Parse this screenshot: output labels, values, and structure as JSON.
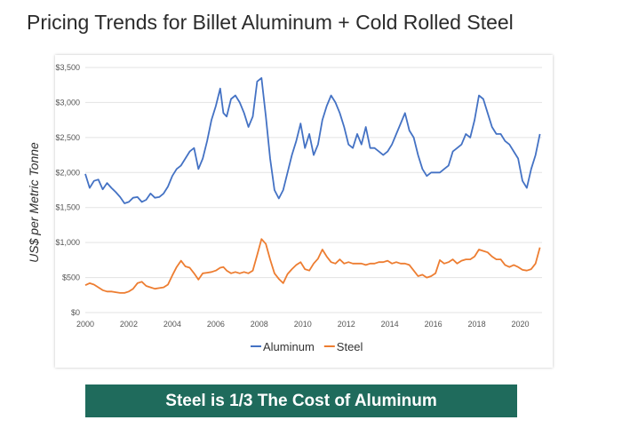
{
  "title": "Pricing Trends for Billet Aluminum + Cold Rolled Steel",
  "banner": "Steel is 1/3 The Cost of Aluminum",
  "colors": {
    "aluminum": "#4472c4",
    "steel": "#ed7d31",
    "banner": "#1f6b5c"
  },
  "chart_data": {
    "type": "line",
    "title": "",
    "xlabel": "",
    "ylabel": "US$ per Metric Tonne",
    "xlim": [
      2000,
      2021
    ],
    "ylim": [
      0,
      3500
    ],
    "x_ticks": [
      "2000",
      "2002",
      "2004",
      "2006",
      "2008",
      "2010",
      "2012",
      "2014",
      "2016",
      "2018",
      "2020"
    ],
    "y_ticks": [
      "$0",
      "$500",
      "$1,000",
      "$1,500",
      "$2,000",
      "$2,500",
      "$3,000",
      "$3,500"
    ],
    "grid": true,
    "legend": "bottom",
    "series": [
      {
        "name": "Aluminum",
        "color": "#4472c4",
        "x": [
          2000.0,
          2000.2,
          2000.4,
          2000.6,
          2000.8,
          2001.0,
          2001.2,
          2001.4,
          2001.6,
          2001.8,
          2002.0,
          2002.2,
          2002.4,
          2002.6,
          2002.8,
          2003.0,
          2003.2,
          2003.4,
          2003.6,
          2003.8,
          2004.0,
          2004.2,
          2004.4,
          2004.6,
          2004.8,
          2005.0,
          2005.2,
          2005.4,
          2005.6,
          2005.8,
          2006.0,
          2006.2,
          2006.35,
          2006.5,
          2006.7,
          2006.9,
          2007.1,
          2007.3,
          2007.5,
          2007.7,
          2007.9,
          2008.1,
          2008.3,
          2008.5,
          2008.7,
          2008.9,
          2009.1,
          2009.3,
          2009.5,
          2009.7,
          2009.9,
          2010.1,
          2010.3,
          2010.5,
          2010.7,
          2010.9,
          2011.1,
          2011.3,
          2011.5,
          2011.7,
          2011.9,
          2012.1,
          2012.3,
          2012.5,
          2012.7,
          2012.9,
          2013.1,
          2013.3,
          2013.5,
          2013.7,
          2013.9,
          2014.1,
          2014.3,
          2014.5,
          2014.7,
          2014.9,
          2015.1,
          2015.3,
          2015.5,
          2015.7,
          2015.9,
          2016.1,
          2016.3,
          2016.5,
          2016.7,
          2016.9,
          2017.1,
          2017.3,
          2017.5,
          2017.7,
          2017.9,
          2018.1,
          2018.3,
          2018.5,
          2018.7,
          2018.9,
          2019.1,
          2019.3,
          2019.5,
          2019.7,
          2019.9,
          2020.1,
          2020.3,
          2020.5,
          2020.7,
          2020.9
        ],
        "y": [
          1980,
          1780,
          1880,
          1900,
          1760,
          1850,
          1780,
          1720,
          1650,
          1560,
          1580,
          1640,
          1650,
          1580,
          1610,
          1700,
          1640,
          1650,
          1700,
          1800,
          1950,
          2050,
          2100,
          2200,
          2300,
          2350,
          2050,
          2200,
          2450,
          2750,
          2950,
          3200,
          2850,
          2800,
          3050,
          3100,
          3000,
          2850,
          2650,
          2800,
          3300,
          3350,
          2800,
          2200,
          1750,
          1630,
          1750,
          2000,
          2250,
          2450,
          2700,
          2350,
          2550,
          2250,
          2400,
          2750,
          2950,
          3100,
          3000,
          2850,
          2650,
          2400,
          2350,
          2550,
          2400,
          2650,
          2350,
          2350,
          2300,
          2250,
          2300,
          2400,
          2550,
          2700,
          2850,
          2600,
          2500,
          2250,
          2050,
          1950,
          2000,
          2000,
          2000,
          2050,
          2100,
          2300,
          2350,
          2400,
          2550,
          2500,
          2750,
          3100,
          3050,
          2850,
          2650,
          2550,
          2550,
          2450,
          2400,
          2300,
          2200,
          1880,
          1780,
          2050,
          2250,
          2550
        ]
      },
      {
        "name": "Steel",
        "color": "#ed7d31",
        "x": [
          2000.0,
          2000.2,
          2000.4,
          2000.6,
          2000.8,
          2001.0,
          2001.2,
          2001.4,
          2001.6,
          2001.8,
          2002.0,
          2002.2,
          2002.4,
          2002.6,
          2002.8,
          2003.0,
          2003.2,
          2003.4,
          2003.6,
          2003.8,
          2004.0,
          2004.2,
          2004.4,
          2004.6,
          2004.8,
          2005.0,
          2005.2,
          2005.4,
          2005.6,
          2005.8,
          2006.0,
          2006.2,
          2006.35,
          2006.5,
          2006.7,
          2006.9,
          2007.1,
          2007.3,
          2007.5,
          2007.7,
          2007.9,
          2008.1,
          2008.3,
          2008.5,
          2008.7,
          2008.9,
          2009.1,
          2009.3,
          2009.5,
          2009.7,
          2009.9,
          2010.1,
          2010.3,
          2010.5,
          2010.7,
          2010.9,
          2011.1,
          2011.3,
          2011.5,
          2011.7,
          2011.9,
          2012.1,
          2012.3,
          2012.5,
          2012.7,
          2012.9,
          2013.1,
          2013.3,
          2013.5,
          2013.7,
          2013.9,
          2014.1,
          2014.3,
          2014.5,
          2014.7,
          2014.9,
          2015.1,
          2015.3,
          2015.5,
          2015.7,
          2015.9,
          2016.1,
          2016.3,
          2016.5,
          2016.7,
          2016.9,
          2017.1,
          2017.3,
          2017.5,
          2017.7,
          2017.9,
          2018.1,
          2018.3,
          2018.5,
          2018.7,
          2018.9,
          2019.1,
          2019.3,
          2019.5,
          2019.7,
          2019.9,
          2020.1,
          2020.3,
          2020.5,
          2020.7,
          2020.9
        ],
        "y": [
          390,
          420,
          400,
          360,
          320,
          300,
          300,
          290,
          280,
          280,
          300,
          340,
          420,
          440,
          380,
          360,
          340,
          350,
          360,
          400,
          530,
          650,
          740,
          660,
          640,
          560,
          470,
          560,
          570,
          580,
          600,
          640,
          650,
          600,
          560,
          580,
          560,
          580,
          560,
          600,
          820,
          1050,
          980,
          760,
          560,
          480,
          420,
          550,
          620,
          680,
          720,
          620,
          600,
          700,
          770,
          900,
          800,
          720,
          700,
          760,
          700,
          720,
          700,
          700,
          700,
          680,
          700,
          700,
          720,
          720,
          740,
          700,
          720,
          700,
          700,
          680,
          600,
          520,
          540,
          500,
          520,
          560,
          750,
          700,
          720,
          760,
          700,
          740,
          760,
          760,
          800,
          900,
          880,
          860,
          800,
          760,
          760,
          680,
          650,
          680,
          650,
          610,
          600,
          620,
          700,
          930
        ]
      }
    ]
  }
}
